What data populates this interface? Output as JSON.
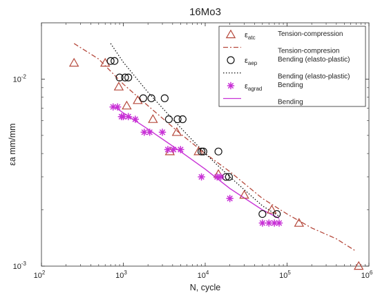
{
  "chart_data": {
    "type": "scatter",
    "title": "16Mo3",
    "xlabel": "N, cycle",
    "ylabel": "εa mm/mm",
    "xscale": "log",
    "yscale": "log",
    "xlim": [
      100,
      1000000
    ],
    "ylim": [
      0.001,
      0.02
    ],
    "x_ticks": [
      {
        "value": 100,
        "base": "10",
        "exp": "2"
      },
      {
        "value": 1000,
        "base": "10",
        "exp": "3"
      },
      {
        "value": 10000,
        "base": "10",
        "exp": "4"
      },
      {
        "value": 100000,
        "base": "10",
        "exp": "5"
      },
      {
        "value": 1000000,
        "base": "10",
        "exp": "6"
      }
    ],
    "y_ticks": [
      {
        "value": 0.001,
        "base": "10",
        "exp": "-3"
      },
      {
        "value": 0.01,
        "base": "10",
        "exp": "-2"
      }
    ],
    "grid": false,
    "legend_position": "top-right",
    "legend": [
      {
        "marker": "triangle",
        "symbol": "ε",
        "sub": "atc",
        "label": "Tension-compression"
      },
      {
        "line": "dashdot",
        "label": "Tension-compresion"
      },
      {
        "marker": "circle",
        "symbol": "ε",
        "sub": "aep",
        "label": "Bending (elasto-plastic)"
      },
      {
        "line": "dotted",
        "label": "Bending (elasto-plastic)"
      },
      {
        "marker": "asterisk",
        "symbol": "ε",
        "sub": "agrad",
        "label": "Bending"
      },
      {
        "line": "solid",
        "label": "Bending"
      }
    ],
    "series": [
      {
        "kind": "triangle",
        "color": "#b5483b",
        "points": [
          [
            250,
            0.0122
          ],
          [
            600,
            0.0122
          ],
          [
            880,
            0.0091
          ],
          [
            1100,
            0.0072
          ],
          [
            1500,
            0.0077
          ],
          [
            2300,
            0.0061
          ],
          [
            3700,
            0.0041
          ],
          [
            4500,
            0.0052
          ],
          [
            8300,
            0.0041
          ],
          [
            14500,
            0.0031
          ],
          [
            30000,
            0.0024
          ],
          [
            65000,
            0.002
          ],
          [
            140000,
            0.0017
          ],
          [
            750000,
            0.001
          ]
        ]
      },
      {
        "kind": "circle",
        "color": "#111111",
        "points": [
          [
            700,
            0.0125
          ],
          [
            780,
            0.0125
          ],
          [
            900,
            0.0102
          ],
          [
            1050,
            0.0102
          ],
          [
            1150,
            0.0102
          ],
          [
            1750,
            0.0079
          ],
          [
            2200,
            0.0079
          ],
          [
            3200,
            0.0079
          ],
          [
            3600,
            0.0061
          ],
          [
            4600,
            0.0061
          ],
          [
            5300,
            0.0061
          ],
          [
            9000,
            0.0041
          ],
          [
            9500,
            0.0041
          ],
          [
            14500,
            0.0041
          ],
          [
            18000,
            0.003
          ],
          [
            19500,
            0.003
          ],
          [
            50000,
            0.0019
          ],
          [
            75000,
            0.0019
          ]
        ]
      },
      {
        "kind": "asterisk",
        "color": "#c831d6",
        "points": [
          [
            750,
            0.0071
          ],
          [
            850,
            0.0071
          ],
          [
            950,
            0.0063
          ],
          [
            1000,
            0.0063
          ],
          [
            1150,
            0.0063
          ],
          [
            1400,
            0.0061
          ],
          [
            1800,
            0.0052
          ],
          [
            2100,
            0.0052
          ],
          [
            3000,
            0.0052
          ],
          [
            3500,
            0.0042
          ],
          [
            4100,
            0.0042
          ],
          [
            5000,
            0.0042
          ],
          [
            9000,
            0.003
          ],
          [
            14000,
            0.003
          ],
          [
            15500,
            0.003
          ],
          [
            20000,
            0.0023
          ],
          [
            50000,
            0.0017
          ],
          [
            60000,
            0.0017
          ],
          [
            70000,
            0.0017
          ],
          [
            80000,
            0.0017
          ]
        ]
      },
      {
        "kind": "dashdot",
        "color": "#b5483b",
        "points": [
          [
            250,
            0.0155
          ],
          [
            500,
            0.0128
          ],
          [
            1000,
            0.0094
          ],
          [
            2000,
            0.0072
          ],
          [
            5000,
            0.0051
          ],
          [
            10000,
            0.004
          ],
          [
            20000,
            0.0032
          ],
          [
            50000,
            0.0023
          ],
          [
            100000,
            0.0019
          ],
          [
            200000,
            0.0016
          ],
          [
            400000,
            0.0014
          ],
          [
            700000,
            0.0012
          ]
        ]
      },
      {
        "kind": "dotted",
        "color": "#111111",
        "points": [
          [
            700,
            0.0155
          ],
          [
            1000,
            0.0123
          ],
          [
            2000,
            0.0085
          ],
          [
            5000,
            0.0055
          ],
          [
            10000,
            0.004
          ],
          [
            20000,
            0.003
          ],
          [
            50000,
            0.0021
          ],
          [
            80000,
            0.00185
          ]
        ]
      },
      {
        "kind": "solid",
        "color": "#c831d6",
        "points": [
          [
            750,
            0.0072
          ],
          [
            1000,
            0.0066
          ],
          [
            2000,
            0.0054
          ],
          [
            5000,
            0.0041
          ],
          [
            10000,
            0.0033
          ],
          [
            20000,
            0.0026
          ],
          [
            50000,
            0.002
          ],
          [
            80000,
            0.0018
          ]
        ]
      }
    ]
  }
}
